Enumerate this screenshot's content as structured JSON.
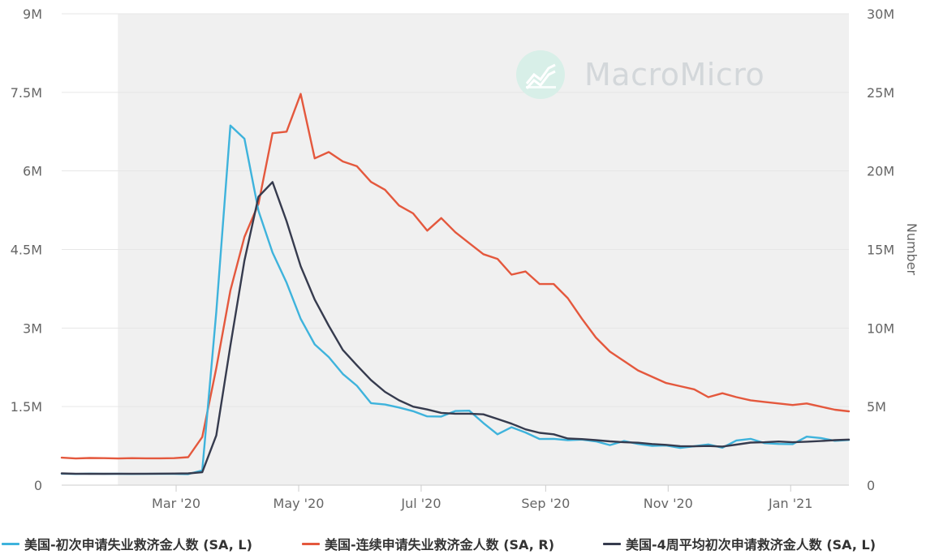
{
  "watermark": {
    "text": "MacroMicro",
    "icon": "macromicro-logo-icon"
  },
  "colors": {
    "initial_claims": "#3eb3dc",
    "continuing_claims": "#e4583d",
    "avg4_claims": "#363b4e",
    "plot_band": "#f0f0f0",
    "grid": "#e6e6e6"
  },
  "chart_data": {
    "type": "line",
    "x_axis": {
      "type": "date",
      "range": [
        "2020-01-04",
        "2021-01-30"
      ],
      "ticks": [
        {
          "date": "2020-03-01",
          "label": "Mar '20"
        },
        {
          "date": "2020-05-01",
          "label": "May '20"
        },
        {
          "date": "2020-07-01",
          "label": "Jul '20"
        },
        {
          "date": "2020-09-01",
          "label": "Sep '20"
        },
        {
          "date": "2020-11-01",
          "label": "Nov '20"
        },
        {
          "date": "2021-01-01",
          "label": "Jan '21"
        }
      ],
      "shaded_band": [
        "2020-02-01",
        "2021-01-30"
      ]
    },
    "y_left": {
      "range": [
        0,
        9000000
      ],
      "ticks": [
        {
          "value": 0,
          "label": "0"
        },
        {
          "value": 1500000,
          "label": "1.5M"
        },
        {
          "value": 3000000,
          "label": "3M"
        },
        {
          "value": 4500000,
          "label": "4.5M"
        },
        {
          "value": 6000000,
          "label": "6M"
        },
        {
          "value": 7500000,
          "label": "7.5M"
        },
        {
          "value": 9000000,
          "label": "9M"
        }
      ]
    },
    "y_right": {
      "range": [
        0,
        30000000
      ],
      "label": "Number",
      "ticks": [
        {
          "value": 0,
          "label": "0"
        },
        {
          "value": 5000000,
          "label": "5M"
        },
        {
          "value": 10000000,
          "label": "10M"
        },
        {
          "value": 15000000,
          "label": "15M"
        },
        {
          "value": 20000000,
          "label": "20M"
        },
        {
          "value": 25000000,
          "label": "25M"
        },
        {
          "value": 30000000,
          "label": "30M"
        }
      ]
    },
    "grid": true,
    "legend_position": "bottom",
    "x": [
      "2020-01-04",
      "2020-01-11",
      "2020-01-18",
      "2020-01-25",
      "2020-02-01",
      "2020-02-08",
      "2020-02-15",
      "2020-02-22",
      "2020-02-29",
      "2020-03-07",
      "2020-03-14",
      "2020-03-21",
      "2020-03-28",
      "2020-04-04",
      "2020-04-11",
      "2020-04-18",
      "2020-04-25",
      "2020-05-02",
      "2020-05-09",
      "2020-05-16",
      "2020-05-23",
      "2020-05-30",
      "2020-06-06",
      "2020-06-13",
      "2020-06-20",
      "2020-06-27",
      "2020-07-04",
      "2020-07-11",
      "2020-07-18",
      "2020-07-25",
      "2020-08-01",
      "2020-08-08",
      "2020-08-15",
      "2020-08-22",
      "2020-08-29",
      "2020-09-05",
      "2020-09-12",
      "2020-09-19",
      "2020-09-26",
      "2020-10-03",
      "2020-10-10",
      "2020-10-17",
      "2020-10-24",
      "2020-10-31",
      "2020-11-07",
      "2020-11-14",
      "2020-11-21",
      "2020-11-28",
      "2020-12-05",
      "2020-12-12",
      "2020-12-19",
      "2020-12-26",
      "2021-01-02",
      "2021-01-09",
      "2021-01-16",
      "2021-01-23",
      "2021-01-30"
    ],
    "series": [
      {
        "name": "美国-初次申请失业救济金人数 (SA, L)",
        "axis": "left",
        "color_key": "initial_claims",
        "values": [
          220000,
          214000,
          220000,
          216000,
          217000,
          214000,
          215000,
          219000,
          216000,
          211000,
          282000,
          3307000,
          6867000,
          6615000,
          5237000,
          4442000,
          3867000,
          3176000,
          2687000,
          2446000,
          2123000,
          1897000,
          1566000,
          1540000,
          1482000,
          1413000,
          1314000,
          1310000,
          1416000,
          1422000,
          1187000,
          971000,
          1106000,
          1006000,
          881000,
          884000,
          860000,
          870000,
          837000,
          766000,
          842000,
          787000,
          751000,
          757000,
          711000,
          743000,
          778000,
          716000,
          853000,
          885000,
          803000,
          787000,
          784000,
          926000,
          900000,
          847000,
          863000
        ]
      },
      {
        "name": "美国-连续申请失业救济金人数 (SA, R)",
        "axis": "right",
        "color_key": "continuing_claims",
        "values": [
          1750000,
          1700000,
          1730000,
          1720000,
          1700000,
          1720000,
          1710000,
          1710000,
          1720000,
          1780000,
          3060000,
          7450000,
          12400000,
          15800000,
          17900000,
          22400000,
          22500000,
          24900000,
          20800000,
          21200000,
          20600000,
          20300000,
          19300000,
          18800000,
          17800000,
          17300000,
          16200000,
          17000000,
          16100000,
          15400000,
          14700000,
          14400000,
          13400000,
          13600000,
          12800000,
          12800000,
          11900000,
          10600000,
          9400000,
          8500000,
          7900000,
          7300000,
          6900000,
          6500000,
          6300000,
          6100000,
          5600000,
          5850000,
          5600000,
          5400000,
          5300000,
          5200000,
          5100000,
          5200000,
          5000000,
          4800000,
          4700000
        ]
      },
      {
        "name": "美国-4周平均初次申请救济金人数 (SA, L)",
        "axis": "left",
        "color_key": "avg4_claims",
        "values": [
          224000,
          219000,
          217000,
          217000,
          219000,
          218000,
          219000,
          220000,
          222000,
          225000,
          247000,
          949000,
          2666000,
          4289000,
          5507000,
          5787000,
          5040000,
          4180000,
          3543000,
          3044000,
          2582000,
          2288000,
          2008000,
          1781000,
          1621000,
          1500000,
          1445000,
          1380000,
          1364000,
          1364000,
          1352000,
          1264000,
          1174000,
          1065000,
          999000,
          972000,
          890000,
          880000,
          860000,
          837000,
          820000,
          810000,
          785000,
          770000,
          745000,
          742000,
          748000,
          737000,
          775000,
          813000,
          820000,
          833000,
          820000,
          830000,
          842000,
          860000,
          870000
        ]
      }
    ]
  }
}
